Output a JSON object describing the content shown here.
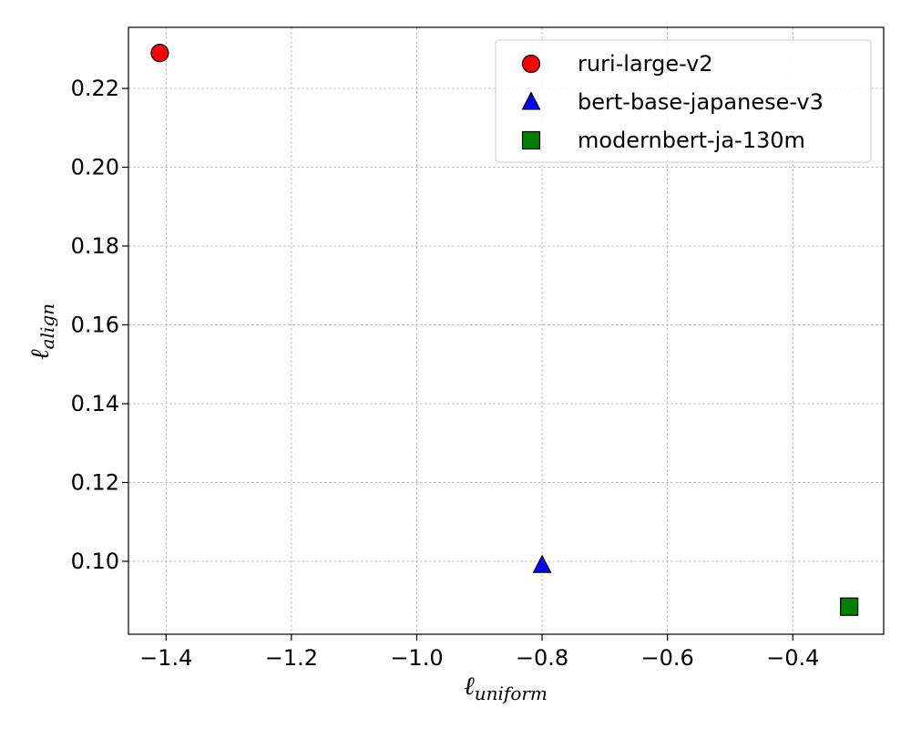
{
  "chart_data": {
    "type": "scatter",
    "xlabel": {
      "main": "ℓ",
      "sub": "uniform"
    },
    "ylabel": {
      "main": "ℓ",
      "sub": "align"
    },
    "xlim": [
      -1.46,
      -0.255
    ],
    "ylim": [
      0.0815,
      0.2355
    ],
    "xticks": [
      -1.4,
      -1.2,
      -1.0,
      -0.8,
      -0.6,
      -0.4
    ],
    "xtick_labels": [
      "−1.4",
      "−1.2",
      "−1.0",
      "−0.8",
      "−0.6",
      "−0.4"
    ],
    "yticks": [
      0.1,
      0.12,
      0.14,
      0.16,
      0.18,
      0.2,
      0.22
    ],
    "ytick_labels": [
      "0.10",
      "0.12",
      "0.14",
      "0.16",
      "0.18",
      "0.20",
      "0.22"
    ],
    "grid": true,
    "legend_position": "top-right",
    "series": [
      {
        "name": "ruri-large-v2",
        "marker": "circle",
        "color": "#ff0000",
        "x": [
          -1.41
        ],
        "y": [
          0.229
        ]
      },
      {
        "name": "bert-base-japanese-v3",
        "marker": "triangle",
        "color": "#0000ff",
        "x": [
          -0.8
        ],
        "y": [
          0.099
        ]
      },
      {
        "name": "modernbert-ja-130m",
        "marker": "square",
        "color": "#008000",
        "x": [
          -0.31
        ],
        "y": [
          0.0885
        ]
      }
    ]
  }
}
